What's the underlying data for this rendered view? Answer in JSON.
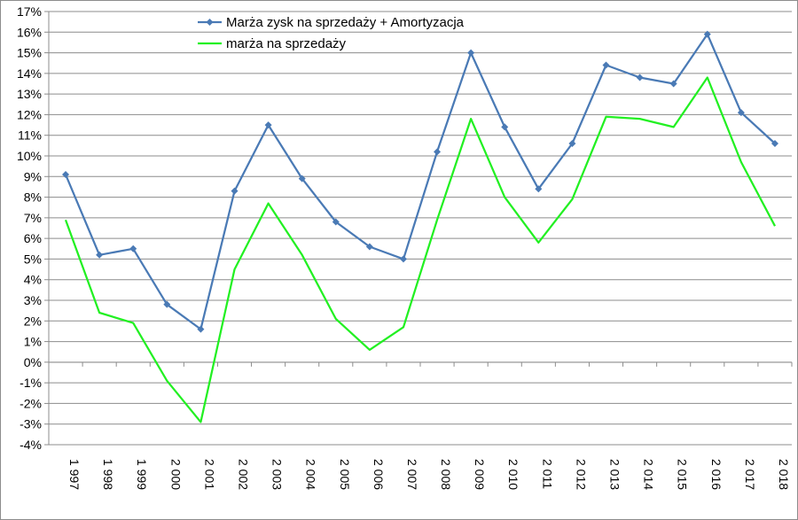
{
  "chart_data": {
    "type": "line",
    "title": "",
    "xlabel": "",
    "ylabel": "",
    "categories": [
      "1 997",
      "1 998",
      "1 999",
      "2 000",
      "2 001",
      "2 002",
      "2 003",
      "2 004",
      "2 005",
      "2 006",
      "2 007",
      "2 008",
      "2 009",
      "2 010",
      "2 011",
      "2 012",
      "2 013",
      "2 014",
      "2 015",
      "2 016",
      "2 017",
      "2 018"
    ],
    "y_ticks": [
      "-4%",
      "-3%",
      "-2%",
      "-1%",
      "0%",
      "1%",
      "2%",
      "3%",
      "4%",
      "5%",
      "6%",
      "7%",
      "8%",
      "9%",
      "10%",
      "11%",
      "12%",
      "13%",
      "14%",
      "15%",
      "16%",
      "17%"
    ],
    "ylim": [
      -4,
      17
    ],
    "grid": true,
    "legend_position": "top-center",
    "series": [
      {
        "name": "Marża zysk na sprzedaży + Amortyzacja",
        "color": "#4a7ab5",
        "marker": "diamond",
        "values": [
          9.1,
          5.2,
          5.5,
          2.8,
          1.6,
          8.3,
          11.5,
          8.9,
          6.8,
          5.6,
          5.0,
          10.2,
          15.0,
          11.4,
          8.4,
          10.6,
          14.4,
          13.8,
          13.5,
          15.9,
          12.1,
          10.6
        ]
      },
      {
        "name": "marża na sprzedaży",
        "color": "#22f022",
        "marker": "none",
        "values": [
          6.9,
          2.4,
          1.9,
          -0.9,
          -2.9,
          4.5,
          7.7,
          5.2,
          2.1,
          0.6,
          1.7,
          6.9,
          11.8,
          8.0,
          5.8,
          7.9,
          11.9,
          11.8,
          11.4,
          13.8,
          9.7,
          6.6
        ]
      }
    ]
  }
}
